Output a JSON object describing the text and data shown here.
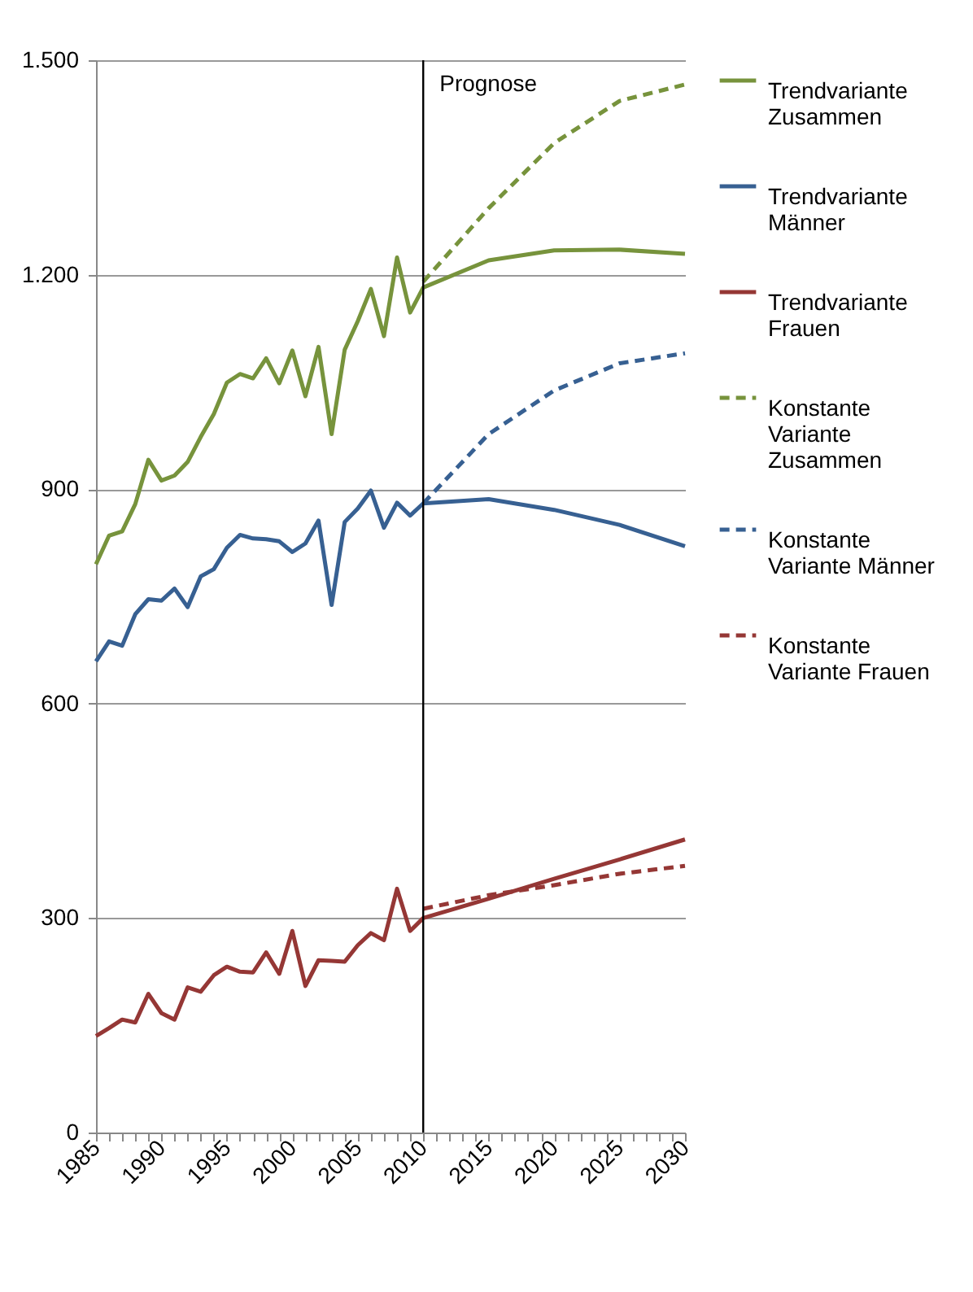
{
  "chart_data": {
    "type": "line",
    "xlim": [
      1985,
      2030
    ],
    "ylim": [
      0,
      1500
    ],
    "xticks": [
      1985,
      {
        "value": 1986,
        "label": null
      },
      {
        "value": 1987,
        "label": null
      },
      {
        "value": 1988,
        "label": null
      },
      {
        "value": 1989,
        "label": null
      },
      1990,
      {
        "value": 1991,
        "label": null
      },
      {
        "value": 1992,
        "label": null
      },
      {
        "value": 1993,
        "label": null
      },
      {
        "value": 1994,
        "label": null
      },
      1995,
      {
        "value": 1996,
        "label": null
      },
      {
        "value": 1997,
        "label": null
      },
      {
        "value": 1998,
        "label": null
      },
      {
        "value": 1999,
        "label": null
      },
      2000,
      {
        "value": 2001,
        "label": null
      },
      {
        "value": 2002,
        "label": null
      },
      {
        "value": 2003,
        "label": null
      },
      {
        "value": 2004,
        "label": null
      },
      2005,
      {
        "value": 2006,
        "label": null
      },
      {
        "value": 2007,
        "label": null
      },
      {
        "value": 2008,
        "label": null
      },
      {
        "value": 2009,
        "label": null
      },
      2010,
      {
        "value": 2011,
        "label": null
      },
      {
        "value": 2012,
        "label": null
      },
      {
        "value": 2013,
        "label": null
      },
      {
        "value": 2014,
        "label": null
      },
      2015,
      {
        "value": 2016,
        "label": null
      },
      {
        "value": 2017,
        "label": null
      },
      {
        "value": 2018,
        "label": null
      },
      {
        "value": 2019,
        "label": null
      },
      2020,
      {
        "value": 2021,
        "label": null
      },
      {
        "value": 2022,
        "label": null
      },
      {
        "value": 2023,
        "label": null
      },
      {
        "value": 2024,
        "label": null
      },
      2025,
      {
        "value": 2026,
        "label": null
      },
      {
        "value": 2027,
        "label": null
      },
      {
        "value": 2028,
        "label": null
      },
      {
        "value": 2029,
        "label": null
      },
      2030
    ],
    "yticks": [
      0,
      300,
      600,
      900,
      {
        "value": 1200,
        "label": "1.200"
      },
      {
        "value": 1500,
        "label": "1.500"
      }
    ],
    "grid": "y",
    "legend": "right",
    "marker": "none",
    "ref_lines": [
      {
        "axis": "x",
        "value": 2010,
        "label": "Prognose",
        "color": "#000000"
      }
    ],
    "series": [
      {
        "name": "Trendvariante Zusammen",
        "color": "#77933c",
        "line_style": "solid",
        "x": [
          1985,
          1986,
          1987,
          1988,
          1989,
          1990,
          1991,
          1992,
          1993,
          1994,
          1995,
          1996,
          1997,
          1998,
          1999,
          2000,
          2001,
          2002,
          2003,
          2004,
          2005,
          2006,
          2007,
          2008,
          2009,
          2010,
          2015,
          2020,
          2025,
          2030
        ],
        "values": [
          795,
          835,
          841,
          879,
          941,
          912,
          919,
          938,
          973,
          1005,
          1049,
          1061,
          1055,
          1083,
          1048,
          1094,
          1030,
          1099,
          977,
          1095,
          1135,
          1180,
          1114,
          1224,
          1147,
          1182,
          1220,
          1234,
          1235,
          1229
        ]
      },
      {
        "name": "Trendvariante Männer",
        "color": "#376092",
        "line_style": "solid",
        "x": [
          1985,
          1986,
          1987,
          1988,
          1989,
          1990,
          1991,
          1992,
          1993,
          1994,
          1995,
          1996,
          1997,
          1998,
          1999,
          2000,
          2001,
          2002,
          2003,
          2004,
          2005,
          2006,
          2007,
          2008,
          2009,
          2010,
          2015,
          2020,
          2025,
          2030
        ],
        "values": [
          659,
          687,
          681,
          725,
          746,
          744,
          761,
          735,
          778,
          788,
          818,
          836,
          831,
          830,
          827,
          812,
          824,
          856,
          738,
          854,
          873,
          898,
          846,
          881,
          863,
          880,
          886,
          871,
          850,
          820
        ]
      },
      {
        "name": "Trendvariante Frauen",
        "color": "#953735",
        "line_style": "solid",
        "x": [
          1985,
          1986,
          1987,
          1988,
          1989,
          1990,
          1991,
          1992,
          1993,
          1994,
          1995,
          1996,
          1997,
          1998,
          1999,
          2000,
          2001,
          2002,
          2003,
          2004,
          2005,
          2006,
          2007,
          2008,
          2009,
          2010,
          2015,
          2020,
          2025,
          2030
        ],
        "values": [
          135,
          146,
          158,
          154,
          194,
          167,
          158,
          203,
          197,
          220,
          232,
          225,
          224,
          252,
          222,
          282,
          205,
          241,
          240,
          239,
          262,
          279,
          269,
          341,
          282,
          300,
          327,
          355,
          382,
          410
        ]
      },
      {
        "name": "Konstante Variante Zusammen",
        "color": "#77933c",
        "line_style": "dashed",
        "x": [
          2010,
          2015,
          2020,
          2025,
          2030
        ],
        "values": [
          1190,
          1293,
          1384,
          1443,
          1466
        ]
      },
      {
        "name": "Konstante Variante Männer",
        "color": "#376092",
        "line_style": "dashed",
        "x": [
          2010,
          2015,
          2020,
          2025,
          2030
        ],
        "values": [
          880,
          977,
          1038,
          1076,
          1090
        ]
      },
      {
        "name": "Konstante Variante Frauen",
        "color": "#953735",
        "line_style": "dashed",
        "x": [
          2010,
          2015,
          2020,
          2025,
          2030
        ],
        "values": [
          313,
          332,
          346,
          362,
          373
        ]
      }
    ]
  }
}
